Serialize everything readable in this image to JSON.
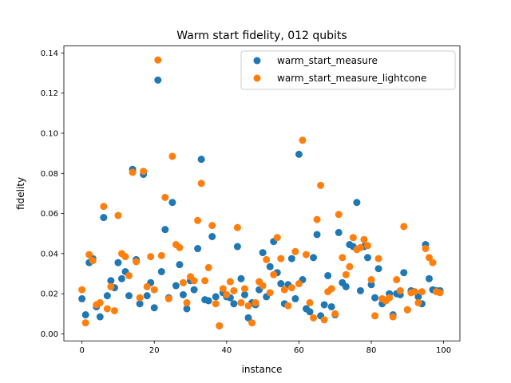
{
  "chart_data": {
    "type": "scatter",
    "title": "Warm start fidelity, 012 qubits",
    "xlabel": "instance",
    "ylabel": "fidelity",
    "xlim": [
      -5,
      104.5
    ],
    "ylim": [
      -0.0035,
      0.1435
    ],
    "xticks": [
      0,
      20,
      40,
      60,
      80,
      100
    ],
    "yticks": [
      0.0,
      0.02,
      0.04,
      0.06,
      0.08,
      0.1,
      0.12,
      0.14
    ],
    "ytick_labels": [
      "0.00",
      "0.02",
      "0.04",
      "0.06",
      "0.08",
      "0.10",
      "0.12",
      "0.14"
    ],
    "grid": false,
    "legend_position": "top-right",
    "series": [
      {
        "name": "warm_start_measure",
        "color": "#1f77b4",
        "x": [
          0,
          1,
          2,
          3,
          4,
          5,
          6,
          7,
          8,
          9,
          10,
          11,
          12,
          13,
          14,
          15,
          16,
          17,
          18,
          19,
          20,
          21,
          22,
          23,
          24,
          25,
          26,
          27,
          28,
          29,
          30,
          31,
          32,
          33,
          34,
          35,
          36,
          37,
          38,
          39,
          40,
          41,
          42,
          43,
          44,
          45,
          46,
          47,
          48,
          49,
          50,
          51,
          52,
          53,
          54,
          55,
          56,
          57,
          58,
          59,
          60,
          61,
          62,
          63,
          64,
          65,
          66,
          67,
          68,
          69,
          70,
          71,
          72,
          73,
          74,
          75,
          76,
          77,
          78,
          79,
          80,
          81,
          82,
          83,
          84,
          85,
          86,
          87,
          88,
          89,
          90,
          91,
          92,
          93,
          94,
          95,
          96,
          97,
          98,
          99
        ],
        "y": [
          0.0175,
          0.0095,
          0.0355,
          0.0375,
          0.0135,
          0.0085,
          0.058,
          0.019,
          0.0265,
          0.023,
          0.0355,
          0.0275,
          0.031,
          0.019,
          0.082,
          0.037,
          0.015,
          0.0795,
          0.019,
          0.0255,
          0.013,
          0.1265,
          0.031,
          0.052,
          0.018,
          0.0655,
          0.024,
          0.0345,
          0.0195,
          0.0125,
          0.0265,
          0.022,
          0.0425,
          0.087,
          0.017,
          0.0165,
          0.0485,
          0.0185,
          0.004,
          0.0205,
          0.0185,
          0.018,
          0.015,
          0.0435,
          0.0275,
          0.0195,
          0.008,
          0.0155,
          0.0145,
          0.022,
          0.0405,
          0.0185,
          0.0335,
          0.046,
          0.0305,
          0.025,
          0.015,
          0.0245,
          0.0375,
          0.0175,
          0.0895,
          0.027,
          0.0125,
          0.011,
          0.038,
          0.0495,
          0.009,
          0.0145,
          0.029,
          0.0135,
          0.0095,
          0.0505,
          0.0255,
          0.0235,
          0.0445,
          0.0435,
          0.0655,
          0.0215,
          0.0435,
          0.038,
          0.0245,
          0.018,
          0.0325,
          0.015,
          0.0165,
          0.02,
          0.0095,
          0.02,
          0.0195,
          0.0305,
          0.012,
          0.0215,
          0.021,
          0.0185,
          0.015,
          0.0445,
          0.0275,
          0.022,
          0.0215,
          0.0215
        ]
      },
      {
        "name": "warm_start_measure_lightcone",
        "color": "#ff7f0e",
        "x": [
          0,
          1,
          2,
          3,
          4,
          5,
          6,
          7,
          8,
          9,
          10,
          11,
          12,
          13,
          14,
          15,
          16,
          17,
          18,
          19,
          20,
          21,
          22,
          23,
          24,
          25,
          26,
          27,
          28,
          29,
          30,
          31,
          32,
          33,
          34,
          35,
          36,
          37,
          38,
          39,
          40,
          41,
          42,
          43,
          44,
          45,
          46,
          47,
          48,
          49,
          50,
          51,
          52,
          53,
          54,
          55,
          56,
          57,
          58,
          59,
          60,
          61,
          62,
          63,
          64,
          65,
          66,
          67,
          68,
          69,
          70,
          71,
          72,
          73,
          74,
          75,
          76,
          77,
          78,
          79,
          80,
          81,
          82,
          83,
          84,
          85,
          86,
          87,
          88,
          89,
          90,
          91,
          92,
          93,
          94,
          95,
          96,
          97,
          98,
          99
        ],
        "y": [
          0.022,
          0.0055,
          0.0395,
          0.0365,
          0.0145,
          0.0155,
          0.0635,
          0.0125,
          0.0235,
          0.0115,
          0.059,
          0.04,
          0.0385,
          0.029,
          0.0805,
          0.036,
          0.018,
          0.081,
          0.0235,
          0.0385,
          0.022,
          0.1365,
          0.039,
          0.068,
          0.0175,
          0.0885,
          0.0445,
          0.043,
          0.0255,
          0.0155,
          0.0285,
          0.0265,
          0.0565,
          0.075,
          0.0265,
          0.033,
          0.054,
          0.015,
          0.004,
          0.0225,
          0.0195,
          0.026,
          0.0215,
          0.053,
          0.0155,
          0.0225,
          0.014,
          0.0055,
          0.0155,
          0.026,
          0.024,
          0.037,
          0.0205,
          0.0295,
          0.048,
          0.0375,
          0.022,
          0.014,
          0.023,
          0.041,
          0.025,
          0.0965,
          0.0395,
          0.0155,
          0.008,
          0.057,
          0.074,
          0.007,
          0.021,
          0.0225,
          0.01,
          0.0595,
          0.038,
          0.0295,
          0.0335,
          0.048,
          0.042,
          0.043,
          0.047,
          0.044,
          0.027,
          0.009,
          0.0375,
          0.0175,
          0.0165,
          0.018,
          0.0085,
          0.027,
          0.0215,
          0.0535,
          0.012,
          0.0205,
          0.021,
          0.0155,
          0.021,
          0.0425,
          0.038,
          0.0355,
          0.021,
          0.0205
        ]
      }
    ]
  }
}
